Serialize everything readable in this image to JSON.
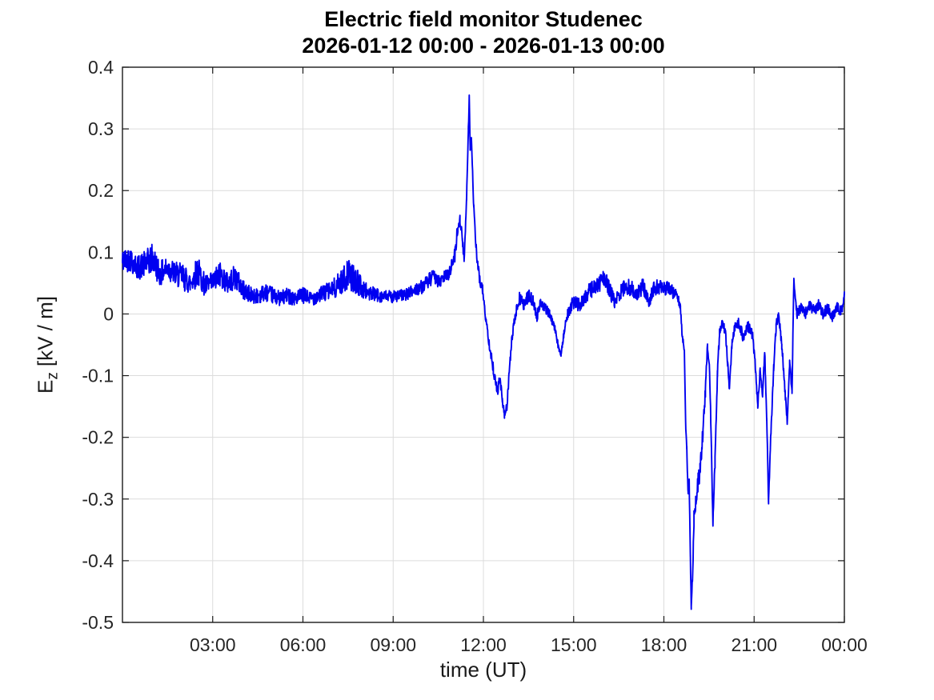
{
  "chart_data": {
    "type": "line",
    "title": "Electric field monitor Studenec",
    "subtitle": "2026-01-12 00:00 - 2026-01-13 00:00",
    "xlabel": "time (UT)",
    "ylabel_prefix": "E",
    "ylabel_sub": "z",
    "ylabel_rest": "[kV / m]",
    "xlim": [
      0,
      24
    ],
    "ylim": [
      -0.5,
      0.4
    ],
    "grid": true,
    "legend": "none",
    "x_ticks": [
      {
        "h": 3,
        "label": "03:00"
      },
      {
        "h": 6,
        "label": "06:00"
      },
      {
        "h": 9,
        "label": "09:00"
      },
      {
        "h": 12,
        "label": "12:00"
      },
      {
        "h": 15,
        "label": "15:00"
      },
      {
        "h": 18,
        "label": "18:00"
      },
      {
        "h": 21,
        "label": "21:00"
      },
      {
        "h": 24,
        "label": "00:00"
      }
    ],
    "y_ticks": [
      {
        "v": 0.4,
        "label": "0.4"
      },
      {
        "v": 0.3,
        "label": "0.3"
      },
      {
        "v": 0.2,
        "label": "0.2"
      },
      {
        "v": 0.1,
        "label": "0.1"
      },
      {
        "v": 0.0,
        "label": "0"
      },
      {
        "v": -0.1,
        "label": "-0.1"
      },
      {
        "v": -0.2,
        "label": "-0.2"
      },
      {
        "v": -0.3,
        "label": "-0.3"
      },
      {
        "v": -0.4,
        "label": "-0.4"
      },
      {
        "v": -0.5,
        "label": "-0.5"
      }
    ],
    "colors": {
      "line": "#0000f0",
      "grid": "#dcdcdc",
      "axis": "#1a1a1a",
      "tick_text": "#262626",
      "background": "#ffffff"
    },
    "noise_seed": 42,
    "samples_per_hour": 100,
    "series": [
      {
        "name": "Ez",
        "units": "kV/m",
        "keypoints_format": [
          "hour_UT",
          "value_kV_per_m",
          "noise_halfband"
        ],
        "keypoints": [
          [
            0.0,
            0.085,
            0.02
          ],
          [
            0.25,
            0.09,
            0.02
          ],
          [
            0.5,
            0.075,
            0.02
          ],
          [
            0.75,
            0.08,
            0.022
          ],
          [
            1.0,
            0.09,
            0.025
          ],
          [
            1.25,
            0.065,
            0.02
          ],
          [
            1.5,
            0.075,
            0.02
          ],
          [
            1.75,
            0.065,
            0.02
          ],
          [
            2.0,
            0.06,
            0.022
          ],
          [
            2.25,
            0.05,
            0.018
          ],
          [
            2.5,
            0.07,
            0.025
          ],
          [
            2.75,
            0.045,
            0.018
          ],
          [
            3.0,
            0.05,
            0.018
          ],
          [
            3.25,
            0.065,
            0.022
          ],
          [
            3.5,
            0.05,
            0.018
          ],
          [
            3.75,
            0.06,
            0.02
          ],
          [
            4.0,
            0.04,
            0.016
          ],
          [
            4.25,
            0.03,
            0.014
          ],
          [
            4.5,
            0.03,
            0.013
          ],
          [
            4.75,
            0.035,
            0.014
          ],
          [
            5.0,
            0.03,
            0.013
          ],
          [
            5.25,
            0.025,
            0.012
          ],
          [
            5.5,
            0.03,
            0.013
          ],
          [
            5.75,
            0.025,
            0.012
          ],
          [
            6.0,
            0.03,
            0.013
          ],
          [
            6.25,
            0.025,
            0.012
          ],
          [
            6.5,
            0.03,
            0.013
          ],
          [
            6.75,
            0.035,
            0.014
          ],
          [
            7.0,
            0.04,
            0.016
          ],
          [
            7.25,
            0.05,
            0.02
          ],
          [
            7.5,
            0.065,
            0.024
          ],
          [
            7.75,
            0.055,
            0.022
          ],
          [
            8.0,
            0.04,
            0.016
          ],
          [
            8.25,
            0.033,
            0.013
          ],
          [
            8.5,
            0.03,
            0.011
          ],
          [
            8.75,
            0.028,
            0.01
          ],
          [
            9.0,
            0.028,
            0.01
          ],
          [
            9.25,
            0.03,
            0.01
          ],
          [
            9.5,
            0.032,
            0.01
          ],
          [
            9.75,
            0.04,
            0.011
          ],
          [
            10.0,
            0.045,
            0.011
          ],
          [
            10.2,
            0.055,
            0.012
          ],
          [
            10.4,
            0.06,
            0.012
          ],
          [
            10.55,
            0.05,
            0.01
          ],
          [
            10.7,
            0.06,
            0.01
          ],
          [
            10.85,
            0.065,
            0.01
          ],
          [
            10.95,
            0.08,
            0.01
          ],
          [
            11.05,
            0.095,
            0.012
          ],
          [
            11.15,
            0.14,
            0.012
          ],
          [
            11.22,
            0.155,
            0.01
          ],
          [
            11.3,
            0.12,
            0.01
          ],
          [
            11.36,
            0.085,
            0.008
          ],
          [
            11.44,
            0.19,
            0.008
          ],
          [
            11.5,
            0.3,
            0.006
          ],
          [
            11.53,
            0.352,
            0.004
          ],
          [
            11.56,
            0.27,
            0.006
          ],
          [
            11.6,
            0.285,
            0.006
          ],
          [
            11.68,
            0.17,
            0.008
          ],
          [
            11.78,
            0.09,
            0.008
          ],
          [
            11.88,
            0.055,
            0.008
          ],
          [
            11.97,
            0.04,
            0.008
          ],
          [
            12.07,
            -0.005,
            0.006
          ],
          [
            12.2,
            -0.05,
            0.008
          ],
          [
            12.33,
            -0.09,
            0.009
          ],
          [
            12.47,
            -0.125,
            0.009
          ],
          [
            12.55,
            -0.105,
            0.008
          ],
          [
            12.63,
            -0.14,
            0.008
          ],
          [
            12.7,
            -0.165,
            0.006
          ],
          [
            12.78,
            -0.15,
            0.007
          ],
          [
            12.85,
            -0.1,
            0.008
          ],
          [
            12.95,
            -0.04,
            0.008
          ],
          [
            13.05,
            -0.005,
            0.008
          ],
          [
            13.2,
            0.025,
            0.01
          ],
          [
            13.35,
            0.015,
            0.01
          ],
          [
            13.5,
            0.03,
            0.011
          ],
          [
            13.65,
            0.02,
            0.01
          ],
          [
            13.78,
            -0.005,
            0.008
          ],
          [
            13.9,
            0.02,
            0.009
          ],
          [
            14.05,
            0.01,
            0.008
          ],
          [
            14.2,
            0.0,
            0.007
          ],
          [
            14.38,
            -0.025,
            0.006
          ],
          [
            14.5,
            -0.055,
            0.005
          ],
          [
            14.58,
            -0.065,
            0.004
          ],
          [
            14.68,
            -0.03,
            0.006
          ],
          [
            14.8,
            0.0,
            0.008
          ],
          [
            14.9,
            0.01,
            0.01
          ],
          [
            15.0,
            0.02,
            0.012
          ],
          [
            15.2,
            0.015,
            0.012
          ],
          [
            15.4,
            0.03,
            0.013
          ],
          [
            15.6,
            0.04,
            0.014
          ],
          [
            15.8,
            0.045,
            0.015
          ],
          [
            16.0,
            0.06,
            0.014
          ],
          [
            16.15,
            0.045,
            0.013
          ],
          [
            16.35,
            0.02,
            0.012
          ],
          [
            16.55,
            0.035,
            0.014
          ],
          [
            16.75,
            0.045,
            0.014
          ],
          [
            16.95,
            0.04,
            0.013
          ],
          [
            17.1,
            0.03,
            0.012
          ],
          [
            17.3,
            0.045,
            0.013
          ],
          [
            17.5,
            0.02,
            0.011
          ],
          [
            17.65,
            0.04,
            0.012
          ],
          [
            17.8,
            0.045,
            0.012
          ],
          [
            18.0,
            0.04,
            0.011
          ],
          [
            18.15,
            0.045,
            0.011
          ],
          [
            18.3,
            0.035,
            0.01
          ],
          [
            18.45,
            0.03,
            0.008
          ],
          [
            18.55,
            0.01,
            0.005
          ],
          [
            18.6,
            -0.03,
            0.005
          ],
          [
            18.68,
            -0.06,
            0.006
          ],
          [
            18.72,
            -0.17,
            0.006
          ],
          [
            18.76,
            -0.22,
            0.006
          ],
          [
            18.8,
            -0.29,
            0.008
          ],
          [
            18.84,
            -0.27,
            0.006
          ],
          [
            18.88,
            -0.39,
            0.006
          ],
          [
            18.91,
            -0.475,
            0.004
          ],
          [
            18.95,
            -0.43,
            0.008
          ],
          [
            19.0,
            -0.33,
            0.015
          ],
          [
            19.1,
            -0.28,
            0.018
          ],
          [
            19.2,
            -0.255,
            0.015
          ],
          [
            19.3,
            -0.19,
            0.012
          ],
          [
            19.38,
            -0.125,
            0.01
          ],
          [
            19.45,
            -0.05,
            0.008
          ],
          [
            19.52,
            -0.09,
            0.008
          ],
          [
            19.58,
            -0.22,
            0.008
          ],
          [
            19.63,
            -0.34,
            0.006
          ],
          [
            19.7,
            -0.24,
            0.01
          ],
          [
            19.78,
            -0.1,
            0.01
          ],
          [
            19.85,
            -0.03,
            0.008
          ],
          [
            19.95,
            -0.015,
            0.008
          ],
          [
            20.05,
            -0.03,
            0.008
          ],
          [
            20.12,
            -0.08,
            0.006
          ],
          [
            20.18,
            -0.123,
            0.005
          ],
          [
            20.26,
            -0.05,
            0.008
          ],
          [
            20.35,
            -0.02,
            0.008
          ],
          [
            20.5,
            -0.015,
            0.009
          ],
          [
            20.65,
            -0.04,
            0.009
          ],
          [
            20.8,
            -0.02,
            0.009
          ],
          [
            20.95,
            -0.035,
            0.009
          ],
          [
            21.05,
            -0.09,
            0.007
          ],
          [
            21.12,
            -0.15,
            0.006
          ],
          [
            21.2,
            -0.09,
            0.007
          ],
          [
            21.28,
            -0.13,
            0.006
          ],
          [
            21.35,
            -0.06,
            0.007
          ],
          [
            21.42,
            -0.17,
            0.007
          ],
          [
            21.48,
            -0.305,
            0.005
          ],
          [
            21.56,
            -0.19,
            0.008
          ],
          [
            21.65,
            -0.09,
            0.009
          ],
          [
            21.73,
            -0.02,
            0.008
          ],
          [
            21.82,
            0.0,
            0.009
          ],
          [
            21.92,
            -0.05,
            0.009
          ],
          [
            22.02,
            -0.12,
            0.007
          ],
          [
            22.1,
            -0.175,
            0.005
          ],
          [
            22.18,
            -0.08,
            0.008
          ],
          [
            22.26,
            -0.125,
            0.006
          ],
          [
            22.32,
            0.055,
            0.004
          ],
          [
            22.42,
            0.0,
            0.008
          ],
          [
            22.55,
            0.01,
            0.009
          ],
          [
            22.7,
            0.0,
            0.009
          ],
          [
            22.85,
            0.015,
            0.009
          ],
          [
            23.0,
            0.005,
            0.009
          ],
          [
            23.15,
            0.015,
            0.009
          ],
          [
            23.3,
            0.0,
            0.009
          ],
          [
            23.45,
            0.01,
            0.009
          ],
          [
            23.6,
            -0.005,
            0.009
          ],
          [
            23.75,
            0.01,
            0.009
          ],
          [
            23.88,
            0.005,
            0.008
          ],
          [
            23.95,
            0.01,
            0.006
          ],
          [
            24.0,
            0.035,
            0.004
          ]
        ]
      }
    ]
  }
}
